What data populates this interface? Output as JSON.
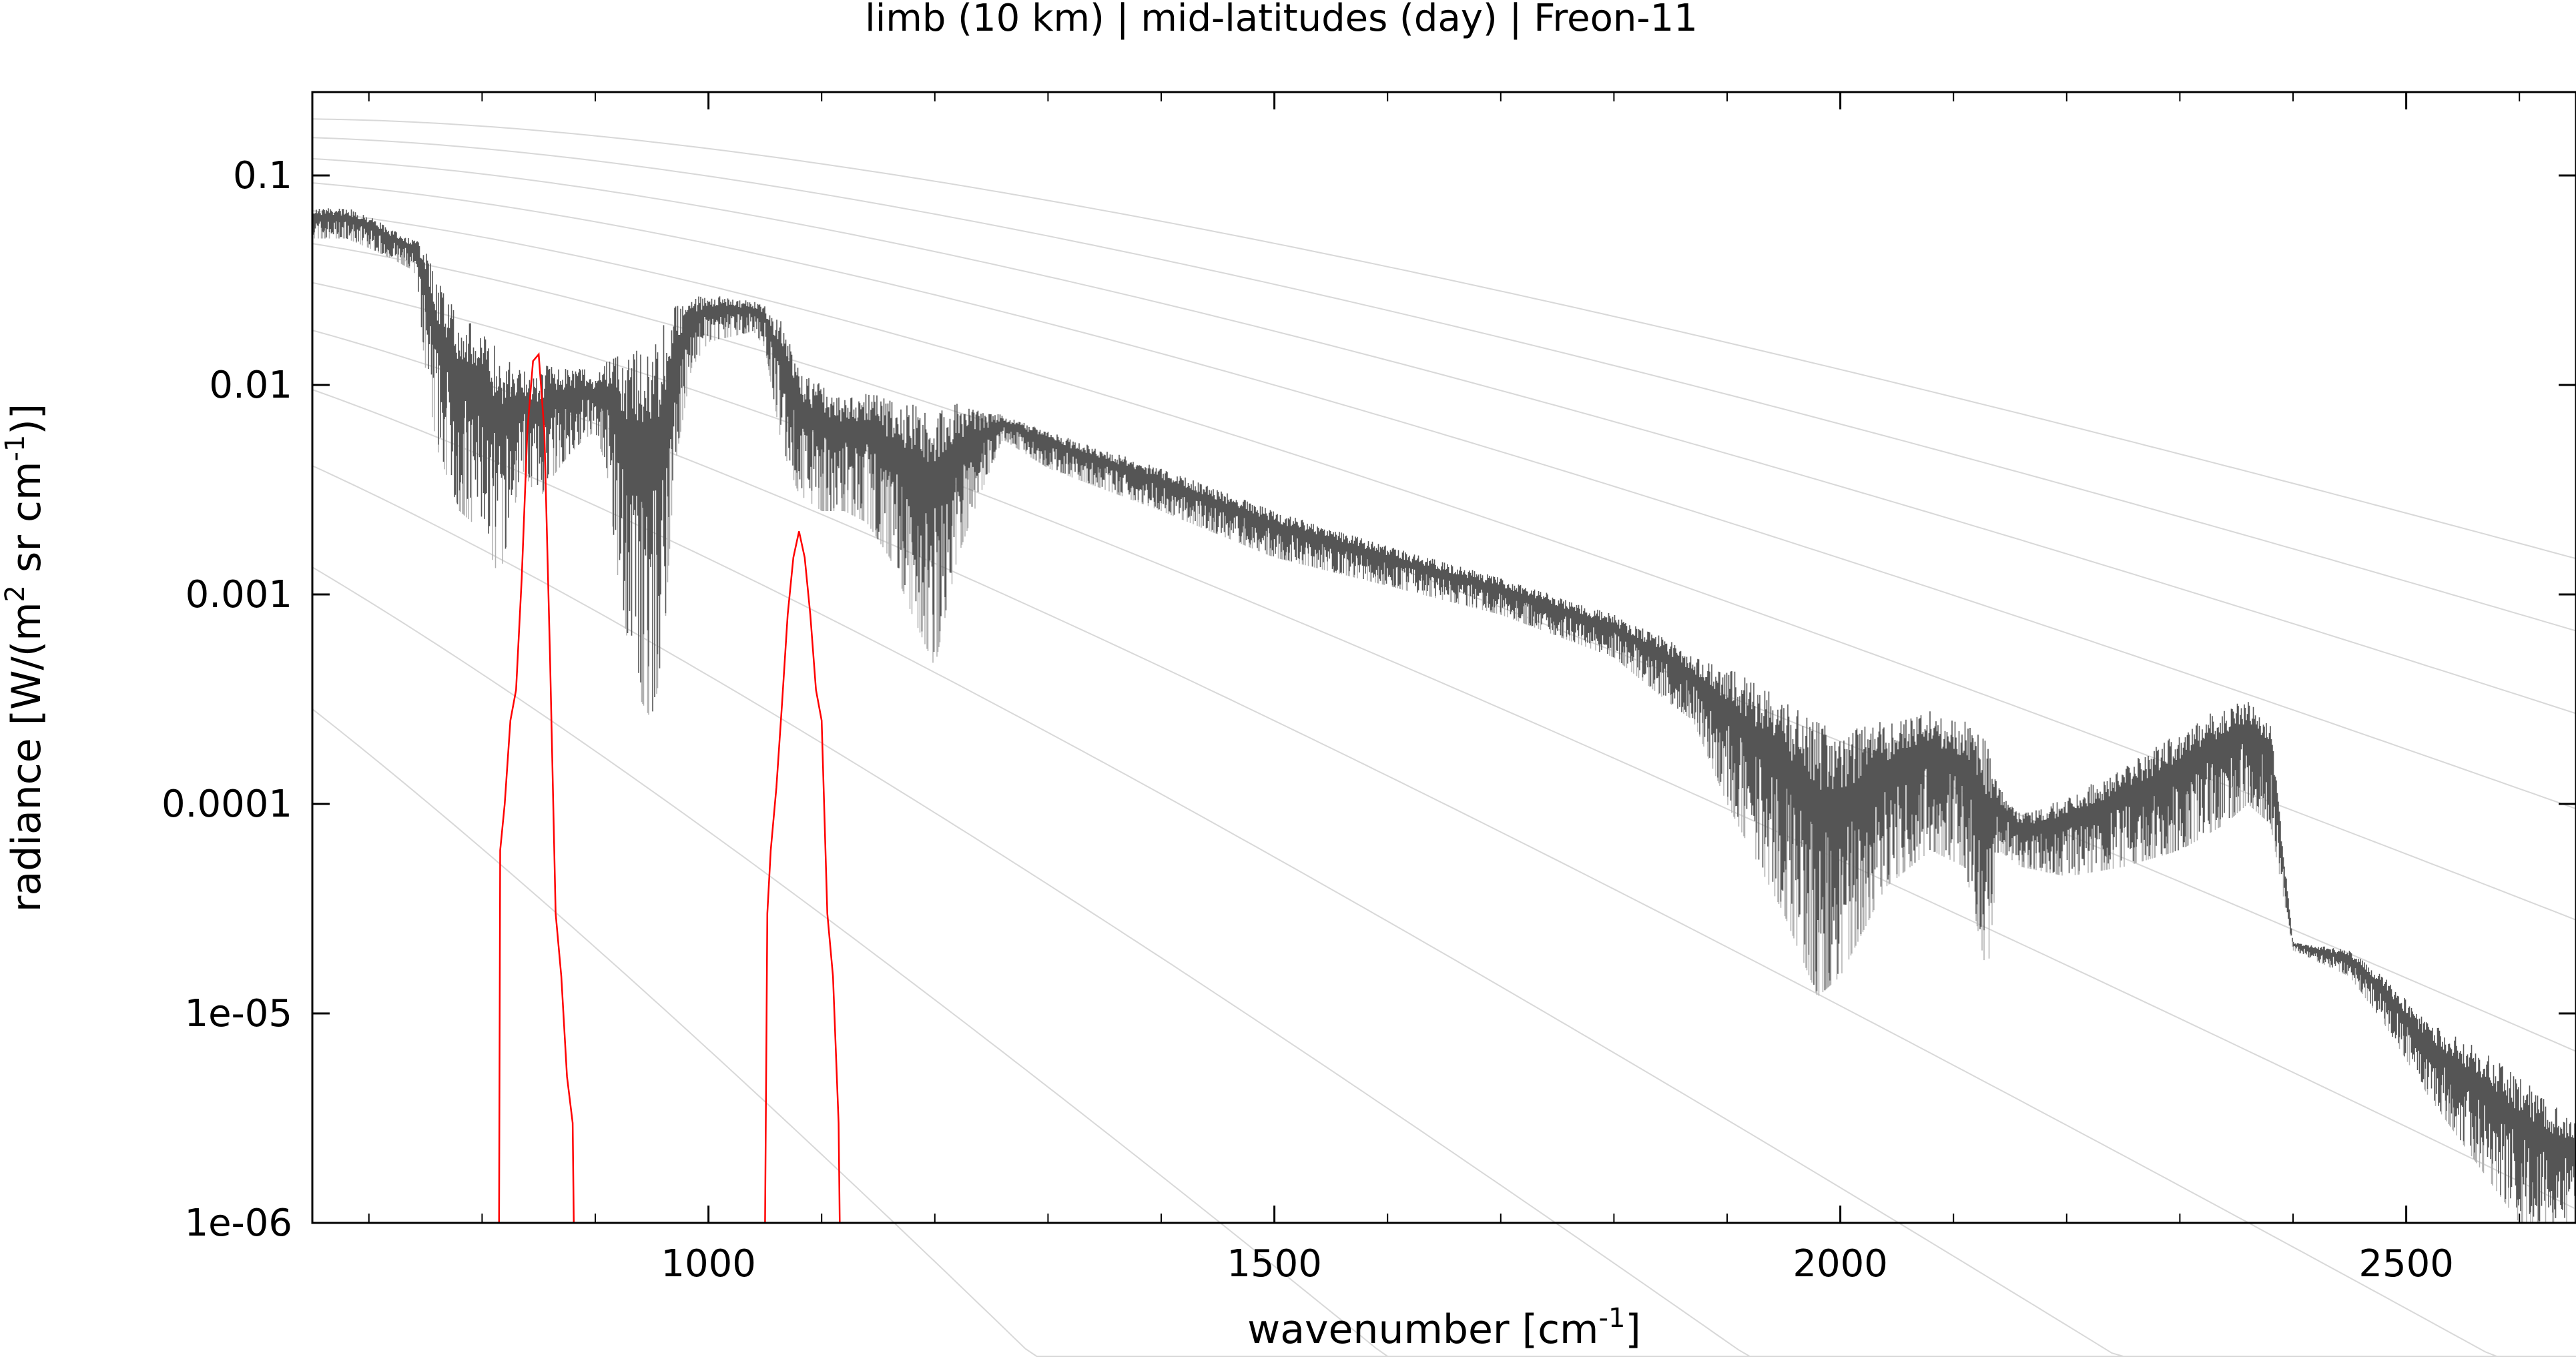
{
  "chart_data": {
    "type": "line",
    "title": "limb (10 km) | mid-latitudes (day) | Freon-11",
    "xlabel": {
      "main": "wavenumber [cm",
      "sup": "-1",
      "end": "]"
    },
    "ylabel": {
      "part1": "radiance [W/(m",
      "sup1": "2",
      "part2": " sr cm",
      "sup2": "-1",
      "part3": ")]"
    },
    "xlim": [
      650,
      2650
    ],
    "ylim": [
      1e-06,
      0.25
    ],
    "yscale": "log",
    "x_ticks": [
      1000,
      1500,
      2000,
      2500
    ],
    "x_tick_labels": [
      "1000",
      "1500",
      "2000",
      "2500"
    ],
    "y_ticks": [
      0.1,
      0.01,
      0.001,
      0.0001,
      1e-05,
      1e-06
    ],
    "y_tick_labels": [
      "0.1",
      "0.01",
      "0.001",
      "0.0001",
      "1e-05",
      "1e-06"
    ],
    "grid": false,
    "colors": {
      "spectrum": "#555555",
      "spectrum_light": "#b0b0b0",
      "contribution": "#ff0000",
      "planck": "#d8d8d8"
    },
    "planck_reference_temperatures_K": [
      320,
      300,
      280,
      260,
      240,
      220,
      200,
      180,
      160,
      140,
      120,
      100
    ],
    "series": [
      {
        "values_description": "total limb radiance spectrum (envelope)",
        "x": [
          650,
          680,
          700,
          720,
          740,
          750,
          760,
          780,
          800,
          815,
          825,
          835,
          850,
          860,
          875,
          890,
          900,
          910,
          920,
          935,
          950,
          960,
          970,
          985,
          1000,
          1020,
          1040,
          1050,
          1065,
          1080,
          1100,
          1120,
          1140,
          1160,
          1180,
          1200,
          1220,
          1240,
          1260,
          1300,
          1400,
          1500,
          1600,
          1700,
          1800,
          1850,
          1870,
          1900,
          1950,
          1980,
          2000,
          2040,
          2080,
          2110,
          2130,
          2140,
          2160,
          2200,
          2250,
          2300,
          2340,
          2360,
          2380,
          2400,
          2450,
          2480,
          2520,
          2560,
          2600,
          2650
        ],
        "upper": [
          0.07,
          0.07,
          0.065,
          0.055,
          0.05,
          0.045,
          0.032,
          0.022,
          0.018,
          0.015,
          0.013,
          0.012,
          0.011,
          0.013,
          0.012,
          0.012,
          0.011,
          0.013,
          0.014,
          0.015,
          0.016,
          0.02,
          0.024,
          0.026,
          0.027,
          0.026,
          0.025,
          0.024,
          0.02,
          0.012,
          0.01,
          0.009,
          0.0095,
          0.0085,
          0.0082,
          0.0085,
          0.0083,
          0.0075,
          0.0072,
          0.006,
          0.004,
          0.0025,
          0.0017,
          0.0012,
          0.0008,
          0.0006,
          0.0005,
          0.00045,
          0.00032,
          0.00025,
          0.00022,
          0.00025,
          0.00028,
          0.00025,
          0.0002,
          0.00012,
          9e-05,
          0.00011,
          0.00015,
          0.00022,
          0.0003,
          0.00032,
          0.00025,
          2.2e-05,
          2e-05,
          1.5e-05,
          9e-06,
          7e-06,
          5e-06,
          3e-06
        ],
        "lower": [
          0.05,
          0.05,
          0.045,
          0.04,
          0.035,
          0.012,
          0.005,
          0.0025,
          0.002,
          0.0012,
          0.002,
          0.004,
          0.0028,
          0.0035,
          0.0045,
          0.0055,
          0.006,
          0.004,
          0.0012,
          0.00035,
          0.00025,
          0.0005,
          0.004,
          0.012,
          0.016,
          0.017,
          0.018,
          0.015,
          0.005,
          0.003,
          0.0025,
          0.0025,
          0.0022,
          0.0015,
          0.0008,
          0.00045,
          0.0015,
          0.003,
          0.0055,
          0.004,
          0.0025,
          0.0015,
          0.0011,
          0.0008,
          0.0005,
          0.0003,
          0.00025,
          0.0001,
          3e-05,
          1.2e-05,
          1.5e-05,
          4e-05,
          6e-05,
          5e-05,
          1.5e-05,
          6e-05,
          5e-05,
          4.5e-05,
          5e-05,
          6e-05,
          8e-05,
          0.0001,
          8e-05,
          2e-05,
          1.5e-05,
          9e-06,
          4e-06,
          2e-06,
          1e-06,
          1e-06
        ]
      },
      {
        "values_description": "Freon-11 contribution",
        "x": [
          815,
          816,
          820,
          825,
          830,
          835,
          840,
          845,
          850,
          855,
          860,
          865,
          870,
          875,
          880,
          881,
          1050,
          1052,
          1055,
          1060,
          1065,
          1070,
          1075,
          1080,
          1085,
          1090,
          1095,
          1100,
          1105,
          1110,
          1115,
          1116
        ],
        "values": [
          1e-06,
          6e-05,
          0.0001,
          0.00025,
          0.00035,
          0.0012,
          0.006,
          0.013,
          0.014,
          0.006,
          0.0005,
          3e-05,
          1.5e-05,
          5e-06,
          3e-06,
          1e-06,
          1e-06,
          3e-05,
          6e-05,
          0.00012,
          0.0003,
          0.0008,
          0.0015,
          0.002,
          0.0015,
          0.0008,
          0.00035,
          0.00025,
          3e-05,
          1.5e-05,
          3e-06,
          1e-06
        ]
      }
    ]
  }
}
